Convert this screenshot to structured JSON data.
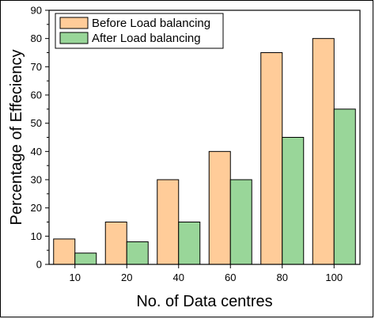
{
  "chart_data": {
    "type": "bar",
    "title": "",
    "xlabel": "No. of Data centres",
    "ylabel": "Percentage of Effeciency",
    "categories": [
      "10",
      "20",
      "40",
      "60",
      "80",
      "100"
    ],
    "ylim": [
      0,
      90
    ],
    "yticks": [
      0,
      10,
      20,
      30,
      40,
      50,
      60,
      70,
      80,
      90
    ],
    "grid": false,
    "legend_position": "top-left",
    "series": [
      {
        "name": "Before Load balancing",
        "values": [
          9,
          15,
          30,
          40,
          75,
          80
        ],
        "color": "#FFCC99"
      },
      {
        "name": "After Load balancing",
        "values": [
          4,
          8,
          15,
          30,
          45,
          55
        ],
        "color": "#99D699"
      }
    ]
  }
}
